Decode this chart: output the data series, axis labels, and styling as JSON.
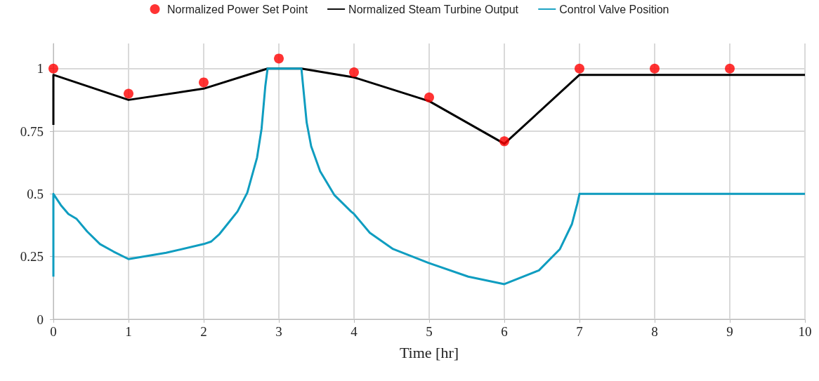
{
  "chart_data": {
    "type": "line",
    "xlabel": "Time [hr]",
    "xlim": [
      0,
      10
    ],
    "xticks": [
      0,
      1,
      2,
      3,
      4,
      5,
      6,
      7,
      8,
      9,
      10
    ],
    "ylim": [
      0,
      1.1
    ],
    "yticks": [
      0,
      0.25,
      0.5,
      0.75,
      1
    ],
    "grid": true,
    "legend": "top",
    "line_style": "solid",
    "series": [
      {
        "name": "Normalized Power Set Point",
        "type": "scatter",
        "marker": "circle",
        "color": "#ff0000",
        "x": [
          0,
          1,
          2,
          3,
          4,
          5,
          6,
          7,
          8,
          9
        ],
        "values": [
          1.0,
          0.9,
          0.945,
          1.04,
          0.985,
          0.885,
          0.71,
          1.0,
          1.0,
          1.0
        ]
      },
      {
        "name": "Normalized Steam Turbine Output",
        "marker": "none",
        "color": "#000000",
        "x": [
          0,
          0,
          1,
          2,
          2.85,
          3.3,
          4,
          5,
          6,
          7,
          10
        ],
        "values": [
          0.775,
          0.975,
          0.875,
          0.92,
          1.0,
          1.0,
          0.965,
          0.87,
          0.7,
          0.975,
          0.975
        ]
      },
      {
        "name": "Control Valve Position",
        "marker": "none",
        "color": "#0f9dc0",
        "x": [
          0,
          0,
          0.1,
          0.2,
          0.31,
          0.45,
          0.62,
          0.8,
          1,
          1.5,
          2,
          2.1,
          2.21,
          2.33,
          2.45,
          2.58,
          2.71,
          2.77,
          2.82,
          2.85,
          3.3,
          3.37,
          3.43,
          3.55,
          3.74,
          3.96,
          4,
          4.21,
          4.52,
          4.99,
          5.52,
          6,
          6.46,
          6.74,
          6.9,
          6.97,
          7,
          10
        ],
        "values": [
          0.17,
          0.5,
          0.455,
          0.42,
          0.4,
          0.35,
          0.3,
          0.27,
          0.24,
          0.265,
          0.3,
          0.31,
          0.34,
          0.385,
          0.43,
          0.505,
          0.645,
          0.76,
          0.93,
          1.0,
          1.0,
          0.785,
          0.69,
          0.59,
          0.495,
          0.43,
          0.42,
          0.345,
          0.28,
          0.225,
          0.17,
          0.14,
          0.195,
          0.28,
          0.38,
          0.46,
          0.5,
          0.5
        ]
      }
    ]
  }
}
